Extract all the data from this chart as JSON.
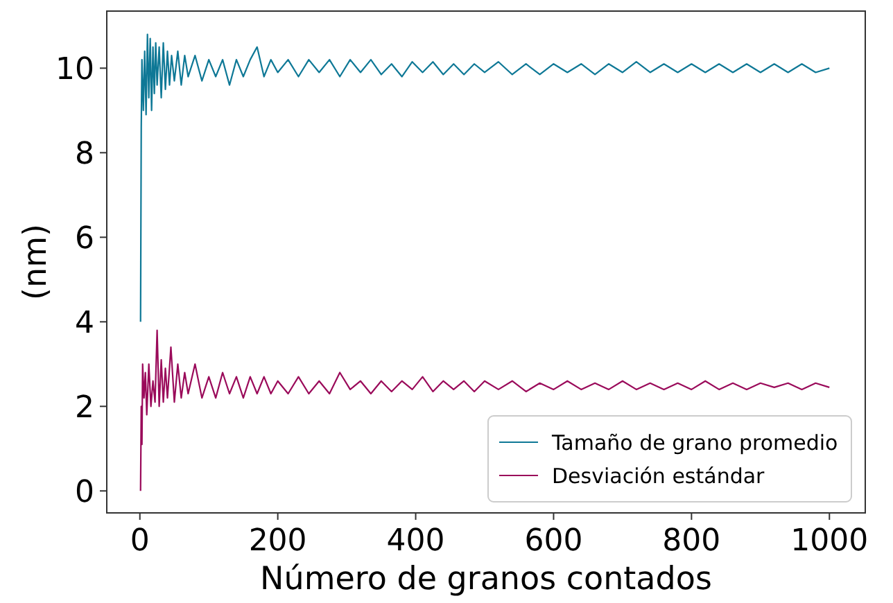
{
  "chart_data": {
    "type": "line",
    "xlabel": "Número de granos contados",
    "ylabel": "(nm)",
    "xlim": [
      -48,
      1052
    ],
    "ylim": [
      -0.52,
      11.35
    ],
    "xticks": [
      0,
      200,
      400,
      600,
      800,
      1000
    ],
    "yticks": [
      0,
      2,
      4,
      6,
      8,
      10
    ],
    "grid": false,
    "legend": "bottom right",
    "marker": "none",
    "line_style": "solid",
    "series": [
      {
        "name": "Tamaño de grano promedio",
        "color": "#0e7896",
        "x": [
          1,
          2,
          3,
          5,
          7,
          9,
          11,
          13,
          15,
          17,
          19,
          21,
          23,
          25,
          28,
          31,
          34,
          37,
          40,
          43,
          46,
          50,
          55,
          60,
          65,
          70,
          80,
          90,
          100,
          110,
          120,
          130,
          140,
          150,
          160,
          170,
          180,
          190,
          200,
          215,
          230,
          245,
          260,
          275,
          290,
          305,
          320,
          335,
          350,
          365,
          380,
          395,
          410,
          425,
          440,
          455,
          470,
          485,
          500,
          520,
          540,
          560,
          580,
          600,
          620,
          640,
          660,
          680,
          700,
          720,
          740,
          760,
          780,
          800,
          820,
          840,
          860,
          880,
          900,
          920,
          940,
          960,
          980,
          1000
        ],
        "values": [
          4.0,
          8.6,
          10.2,
          9.0,
          10.4,
          8.9,
          10.8,
          9.3,
          10.7,
          9.0,
          10.5,
          9.4,
          10.6,
          9.6,
          10.5,
          9.3,
          10.6,
          9.5,
          10.4,
          9.6,
          10.3,
          9.7,
          10.4,
          9.6,
          10.3,
          9.8,
          10.3,
          9.7,
          10.2,
          9.8,
          10.2,
          9.6,
          10.2,
          9.8,
          10.2,
          10.5,
          9.8,
          10.2,
          9.9,
          10.2,
          9.8,
          10.2,
          9.9,
          10.2,
          9.8,
          10.2,
          9.9,
          10.2,
          9.85,
          10.1,
          9.8,
          10.15,
          9.9,
          10.15,
          9.85,
          10.1,
          9.85,
          10.1,
          9.9,
          10.15,
          9.85,
          10.1,
          9.85,
          10.1,
          9.9,
          10.1,
          9.85,
          10.1,
          9.9,
          10.15,
          9.9,
          10.1,
          9.9,
          10.1,
          9.9,
          10.1,
          9.9,
          10.1,
          9.9,
          10.1,
          9.9,
          10.1,
          9.9,
          10.0
        ]
      },
      {
        "name": "Desviación estándar",
        "color": "#9a0a5a",
        "x": [
          1,
          2,
          3,
          4,
          6,
          8,
          10,
          13,
          16,
          19,
          22,
          25,
          28,
          31,
          34,
          37,
          40,
          45,
          50,
          55,
          60,
          65,
          70,
          80,
          90,
          100,
          110,
          120,
          130,
          140,
          150,
          160,
          170,
          180,
          190,
          200,
          215,
          230,
          245,
          260,
          275,
          290,
          305,
          320,
          335,
          350,
          365,
          380,
          395,
          410,
          425,
          440,
          455,
          470,
          485,
          500,
          520,
          540,
          560,
          580,
          600,
          620,
          640,
          660,
          680,
          700,
          720,
          740,
          760,
          780,
          800,
          820,
          840,
          860,
          880,
          900,
          920,
          940,
          960,
          980,
          1000
        ],
        "values": [
          0.0,
          2.0,
          1.1,
          3.0,
          2.2,
          2.8,
          1.8,
          3.0,
          2.0,
          2.6,
          2.1,
          3.8,
          2.0,
          3.1,
          2.1,
          2.9,
          2.2,
          3.4,
          2.1,
          3.0,
          2.2,
          2.8,
          2.3,
          3.0,
          2.2,
          2.7,
          2.2,
          2.8,
          2.3,
          2.7,
          2.2,
          2.7,
          2.3,
          2.7,
          2.3,
          2.6,
          2.3,
          2.7,
          2.3,
          2.6,
          2.3,
          2.8,
          2.4,
          2.6,
          2.3,
          2.6,
          2.35,
          2.6,
          2.4,
          2.7,
          2.35,
          2.6,
          2.4,
          2.6,
          2.35,
          2.6,
          2.4,
          2.6,
          2.35,
          2.55,
          2.4,
          2.6,
          2.4,
          2.55,
          2.4,
          2.6,
          2.4,
          2.55,
          2.4,
          2.55,
          2.4,
          2.6,
          2.4,
          2.55,
          2.4,
          2.55,
          2.45,
          2.55,
          2.4,
          2.55,
          2.45
        ]
      }
    ]
  }
}
